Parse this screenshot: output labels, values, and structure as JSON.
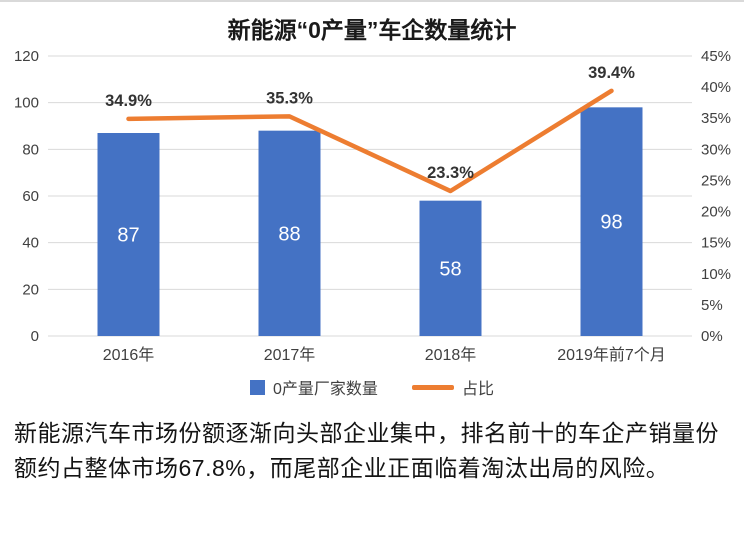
{
  "chart_data": {
    "type": "combo-bar-line",
    "title": "新能源“0产量”车企数量统计",
    "categories": [
      "2016年",
      "2017年",
      "2018年",
      "2019年前7个月"
    ],
    "series": [
      {
        "name": "0产量厂家数量",
        "type": "bar",
        "axis": "left",
        "color": "#4472C4",
        "values": [
          87,
          88,
          58,
          98
        ],
        "value_labels": [
          "87",
          "88",
          "58",
          "98"
        ]
      },
      {
        "name": "占比",
        "type": "line",
        "axis": "right",
        "color": "#ED7D31",
        "values": [
          34.9,
          35.3,
          23.3,
          39.4
        ],
        "value_labels": [
          "34.9%",
          "35.3%",
          "23.3%",
          "39.4%"
        ]
      }
    ],
    "left_axis": {
      "min": 0,
      "max": 120,
      "ticks": [
        0,
        20,
        40,
        60,
        80,
        100,
        120
      ]
    },
    "right_axis": {
      "min": 0,
      "max": 45,
      "tick_labels": [
        "0%",
        "5%",
        "10%",
        "15%",
        "20%",
        "25%",
        "30%",
        "35%",
        "40%",
        "45%"
      ]
    },
    "grid": true,
    "legend_position": "bottom",
    "colors": {
      "bar": "#4472C4",
      "line": "#ED7D31",
      "grid": "#d9d9d9",
      "axis_text": "#404040",
      "bar_label": "#ffffff",
      "line_label": "#333333"
    }
  },
  "caption": "新能源汽车市场份额逐渐向头部企业集中，排名前十的车企产销量份额约占整体市场67.8%，而尾部企业正面临着淘汰出局的风险。"
}
